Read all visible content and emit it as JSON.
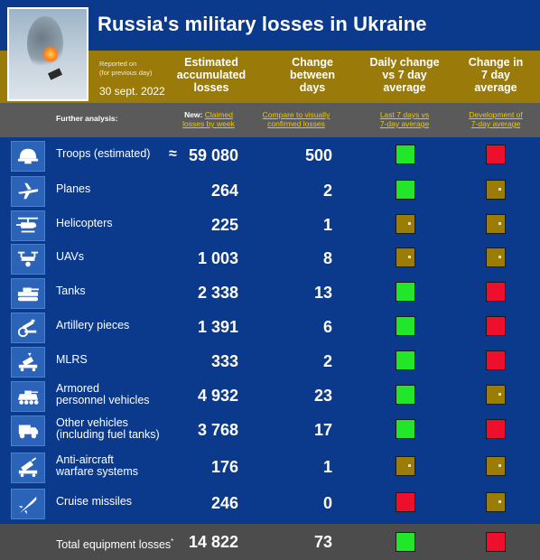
{
  "header": {
    "title": "Russia's military losses in Ukraine",
    "reported_on": "Reported on",
    "for_previous_day": "(for previous day)",
    "date": "30 sept. 2022"
  },
  "columns": {
    "accumulated": [
      "Estimated",
      "accumulated",
      "losses"
    ],
    "change": [
      "Change",
      "between",
      "days"
    ],
    "daily": [
      "Daily change",
      "vs 7 day",
      "average"
    ],
    "avg": [
      "Change in",
      "7 day",
      "average"
    ]
  },
  "subheader": {
    "further": "Further analysis:",
    "new_label": "New:",
    "link1_a": "Claimed",
    "link1_b": "losses by week",
    "link2_a": "Compare to visually",
    "link2_b": "confirmed losses",
    "link3_a": "Last 7 days vs",
    "link3_b": "7-day average",
    "link4_a": "Development of",
    "link4_b": "7-day average"
  },
  "colors": {
    "green": "#22e62a",
    "red": "#ee0f2d",
    "gold": "#9b7d05"
  },
  "rows": [
    {
      "icon": "helmet-icon",
      "label1": "Troops (estimated)",
      "label2": "",
      "approx": "≈",
      "value": "59 080",
      "change": "500",
      "daily": "green",
      "avg": "red"
    },
    {
      "icon": "plane-icon",
      "label1": "Planes",
      "label2": "",
      "approx": "",
      "value": "264",
      "change": "2",
      "daily": "green",
      "avg": "gold"
    },
    {
      "icon": "helicopter-icon",
      "label1": "Helicopters",
      "label2": "",
      "approx": "",
      "value": "225",
      "change": "1",
      "daily": "gold",
      "avg": "gold"
    },
    {
      "icon": "drone-icon",
      "label1": "UAVs",
      "label2": "",
      "approx": "",
      "value": "1 003",
      "change": "8",
      "daily": "gold",
      "avg": "gold"
    },
    {
      "icon": "tank-icon",
      "label1": "Tanks",
      "label2": "",
      "approx": "",
      "value": "2 338",
      "change": "13",
      "daily": "green",
      "avg": "red"
    },
    {
      "icon": "artillery-icon",
      "label1": "Artillery pieces",
      "label2": "",
      "approx": "",
      "value": "1 391",
      "change": "6",
      "daily": "green",
      "avg": "red"
    },
    {
      "icon": "mlrs-icon",
      "label1": "MLRS",
      "label2": "",
      "approx": "",
      "value": "333",
      "change": "2",
      "daily": "green",
      "avg": "red"
    },
    {
      "icon": "apc-icon",
      "label1": "Armored",
      "label2": "personnel vehicles",
      "approx": "",
      "value": "4 932",
      "change": "23",
      "daily": "green",
      "avg": "gold"
    },
    {
      "icon": "truck-icon",
      "label1": "Other vehicles",
      "label2": "(including fuel tanks)",
      "approx": "",
      "value": "3 768",
      "change": "17",
      "daily": "green",
      "avg": "red"
    },
    {
      "icon": "anti-aircraft-icon",
      "label1": "Anti-aircraft",
      "label2": "warfare systems",
      "approx": "",
      "value": "176",
      "change": "1",
      "daily": "gold",
      "avg": "gold"
    },
    {
      "icon": "missile-icon",
      "label1": "Cruise missiles",
      "label2": "",
      "approx": "",
      "value": "246",
      "change": "0",
      "daily": "red",
      "avg": "gold"
    }
  ],
  "total": {
    "label": "Total equipment losses",
    "asterisk": "*",
    "value": "14 822",
    "change": "73",
    "daily": "green",
    "avg": "red"
  }
}
